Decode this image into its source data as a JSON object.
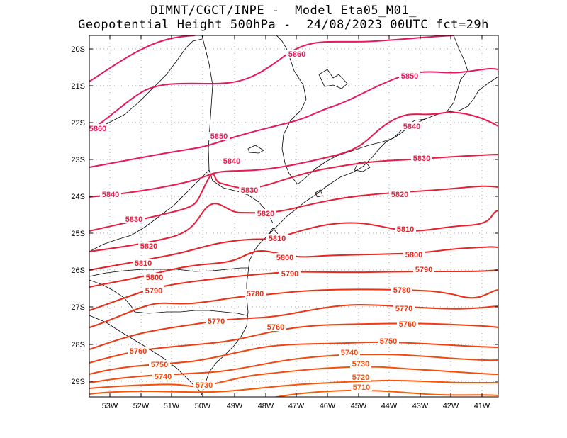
{
  "title": {
    "line1": "DIMNT/CGCT/INPE -  Model Eta05_M01_",
    "line2": "Geopotential Height 500hPa -  24/08/2023 00UTC fct=29h"
  },
  "map_axes": {
    "lat_labels": [
      "20S",
      "21S",
      "22S",
      "23S",
      "24S",
      "25S",
      "26S",
      "27S",
      "28S",
      "29S"
    ],
    "lon_labels": [
      "53W",
      "52W",
      "51W",
      "50W",
      "49W",
      "48W",
      "47W",
      "46W",
      "45W",
      "44W",
      "43W",
      "42W",
      "41W"
    ]
  },
  "contours": [
    {
      "value": 5860,
      "label": "5860",
      "color": "#e8185a"
    },
    {
      "value": 5850,
      "label": "5850",
      "color": "#e8185a"
    },
    {
      "value": 5840,
      "label": "5840",
      "color": "#e81a50"
    },
    {
      "value": 5830,
      "label": "5830",
      "color": "#e81c44"
    },
    {
      "value": 5820,
      "label": "5820",
      "color": "#e81e38"
    },
    {
      "value": 5810,
      "label": "5810",
      "color": "#e8202c"
    },
    {
      "value": 5800,
      "label": "5800",
      "color": "#ea2420"
    },
    {
      "value": 5790,
      "label": "5790",
      "color": "#ec2a18"
    },
    {
      "value": 5780,
      "label": "5780",
      "color": "#ee3014"
    },
    {
      "value": 5770,
      "label": "5770",
      "color": "#f03612"
    },
    {
      "value": 5760,
      "label": "5760",
      "color": "#f23c10"
    },
    {
      "value": 5750,
      "label": "5750",
      "color": "#f4420e"
    },
    {
      "value": 5740,
      "label": "5740",
      "color": "#f6480c"
    },
    {
      "value": 5730,
      "label": "5730",
      "color": "#f84e0a"
    },
    {
      "value": 5720,
      "label": "5720",
      "color": "#fa5408"
    },
    {
      "value": 5710,
      "label": "5710",
      "color": "#fb5a06"
    }
  ]
}
